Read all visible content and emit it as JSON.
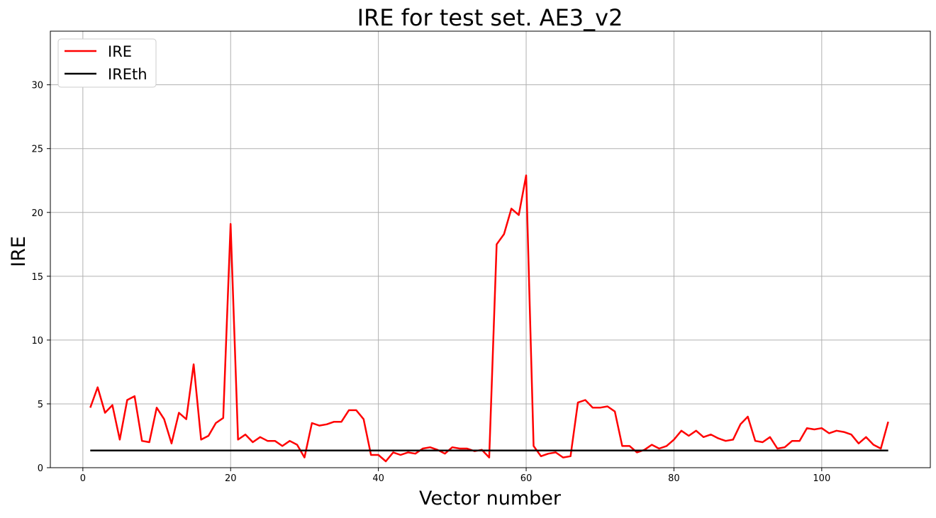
{
  "chart_data": {
    "type": "line",
    "title": "IRE for test set. AE3_v2",
    "xlabel": "Vector number",
    "ylabel": "IRE",
    "xlim": [
      -4.4,
      114.7
    ],
    "ylim": [
      0,
      34.2
    ],
    "xticks": [
      0,
      20,
      40,
      60,
      80,
      100
    ],
    "yticks": [
      0,
      5,
      10,
      15,
      20,
      25,
      30
    ],
    "grid": true,
    "legend_position": "top-left",
    "series": [
      {
        "name": "IRE",
        "color": "#ff0000",
        "x_start": 1,
        "values": [
          4.7,
          6.3,
          4.3,
          4.9,
          2.2,
          5.3,
          5.6,
          2.1,
          2.0,
          4.7,
          3.8,
          1.9,
          4.3,
          3.8,
          8.1,
          2.2,
          2.5,
          3.5,
          3.9,
          19.1,
          2.2,
          2.6,
          2.0,
          2.4,
          2.1,
          2.1,
          1.7,
          2.1,
          1.8,
          0.8,
          3.5,
          3.3,
          3.4,
          3.6,
          3.6,
          4.5,
          4.5,
          3.8,
          1.0,
          1.0,
          0.5,
          1.2,
          1.0,
          1.2,
          1.1,
          1.5,
          1.6,
          1.4,
          1.1,
          1.6,
          1.5,
          1.5,
          1.3,
          1.4,
          0.8,
          17.5,
          18.3,
          20.3,
          19.8,
          22.9,
          1.7,
          0.9,
          1.1,
          1.2,
          0.8,
          0.9,
          5.1,
          5.3,
          4.7,
          4.7,
          4.8,
          4.4,
          1.7,
          1.7,
          1.2,
          1.4,
          1.8,
          1.5,
          1.7,
          2.2,
          2.9,
          2.5,
          2.9,
          2.4,
          2.6,
          2.3,
          2.1,
          2.2,
          3.4,
          4.0,
          2.1,
          2.0,
          2.4,
          1.5,
          1.6,
          2.1,
          2.1,
          3.1,
          3.0,
          3.1,
          2.7,
          2.9,
          2.8,
          2.6,
          1.9,
          2.4,
          1.8,
          1.5,
          3.6
        ]
      },
      {
        "name": "IREth",
        "color": "#000000",
        "x": [
          1,
          109
        ],
        "values": [
          1.35,
          1.35
        ]
      }
    ]
  }
}
